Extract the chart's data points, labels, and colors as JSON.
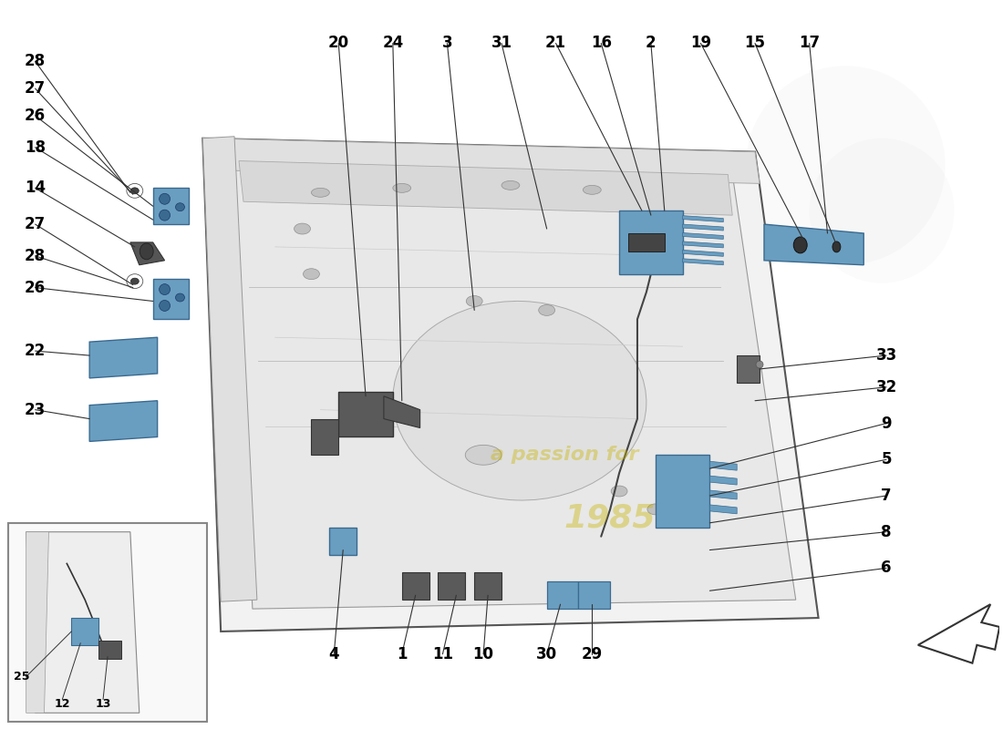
{
  "bg_color": "#ffffff",
  "watermark_color": "#c8b400",
  "watermark_alpha": 0.4,
  "part_label_color": "#000000",
  "part_label_fontsize": 12,
  "part_label_fontweight": "bold",
  "hinge_blue": "#6a9ec0",
  "hinge_blue_dark": "#3a6a90",
  "door_line_color": "#555555",
  "door_fill": "#f2f2f2",
  "door_inner_fill": "#e8e8e8"
}
